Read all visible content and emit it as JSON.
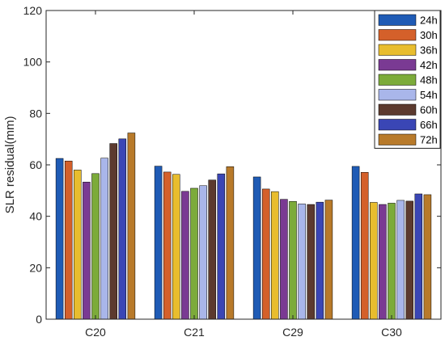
{
  "chart_data": {
    "type": "bar",
    "title": "",
    "xlabel": "",
    "ylabel": "SLR residual(mm)",
    "ylim": [
      0,
      120
    ],
    "yticks": [
      0,
      20,
      40,
      60,
      80,
      100,
      120
    ],
    "grid": false,
    "legend_position": "top-right",
    "categories": [
      "C20",
      "C21",
      "C29",
      "C30"
    ],
    "series": [
      {
        "name": "24h",
        "color": "#1f5bb5",
        "values": [
          62.5,
          59.5,
          55.3,
          59.4
        ]
      },
      {
        "name": "30h",
        "color": "#d4602a",
        "values": [
          61.5,
          57.2,
          50.6,
          57.1
        ]
      },
      {
        "name": "36h",
        "color": "#e8bd2e",
        "values": [
          58.0,
          56.3,
          49.6,
          45.4
        ]
      },
      {
        "name": "42h",
        "color": "#7a3a93",
        "values": [
          53.3,
          49.7,
          46.6,
          44.6
        ]
      },
      {
        "name": "48h",
        "color": "#7cab3a",
        "values": [
          56.6,
          50.9,
          45.8,
          45.1
        ]
      },
      {
        "name": "54h",
        "color": "#a9b6ea",
        "values": [
          62.6,
          51.9,
          44.8,
          46.2
        ]
      },
      {
        "name": "60h",
        "color": "#5c3a2e",
        "values": [
          68.3,
          54.1,
          44.6,
          45.9
        ]
      },
      {
        "name": "66h",
        "color": "#3a46b5",
        "values": [
          70.1,
          56.5,
          45.5,
          48.7
        ]
      },
      {
        "name": "72h",
        "color": "#b87a2a",
        "values": [
          72.4,
          59.3,
          46.3,
          48.4
        ]
      }
    ]
  }
}
